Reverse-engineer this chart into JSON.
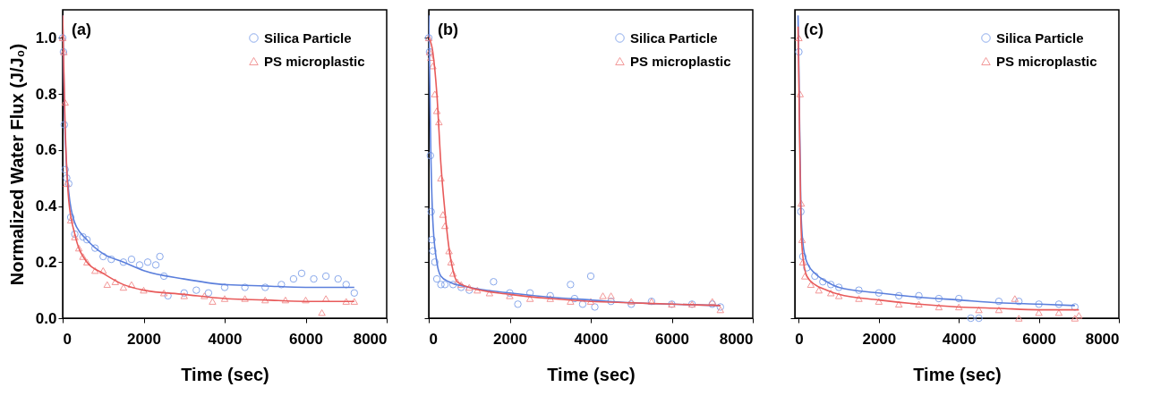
{
  "chart_data": [
    {
      "type": "scatter",
      "xlabel": "Time (sec)",
      "ylabel": "Normalized Water Flux (J/J₀)",
      "annotations": [
        "(a)"
      ],
      "xlim": [
        0,
        8000
      ],
      "xticks": [
        0,
        2000,
        4000,
        6000,
        8000
      ],
      "ylim": [
        0,
        1.1
      ],
      "yticks": [
        {
          "value": 0,
          "label": "0.0"
        },
        {
          "value": 0.2,
          "label": "0.2"
        },
        {
          "value": 0.4,
          "label": "0.4"
        },
        {
          "value": 0.6,
          "label": "0.6"
        },
        {
          "value": 0.8,
          "label": "0.8"
        },
        {
          "value": 1.0,
          "label": "1.0"
        }
      ],
      "grid": false,
      "legend": "top right",
      "series": [
        {
          "name": "Silica Particle",
          "marker": "circle",
          "color": "#7b9ee8",
          "x": [
            0,
            20,
            40,
            60,
            100,
            150,
            200,
            300,
            500,
            600,
            800,
            1000,
            1200,
            1500,
            1700,
            1900,
            2100,
            2300,
            2400,
            2500,
            2600,
            3000,
            3300,
            3600,
            4000,
            4500,
            5000,
            5400,
            5700,
            5900,
            6200,
            6500,
            6800,
            7000,
            7200
          ],
          "values": [
            1.0,
            0.95,
            0.69,
            0.53,
            0.5,
            0.48,
            0.36,
            0.3,
            0.29,
            0.28,
            0.25,
            0.22,
            0.21,
            0.2,
            0.21,
            0.19,
            0.2,
            0.19,
            0.22,
            0.15,
            0.08,
            0.09,
            0.1,
            0.09,
            0.11,
            0.11,
            0.11,
            0.12,
            0.14,
            0.16,
            0.14,
            0.15,
            0.14,
            0.12,
            0.09
          ]
        },
        {
          "name": "PS microplastic",
          "marker": "triangle",
          "color": "#f08a8a",
          "x": [
            0,
            30,
            60,
            100,
            200,
            300,
            400,
            500,
            600,
            800,
            1000,
            1100,
            1300,
            1500,
            1700,
            2000,
            2500,
            3000,
            3500,
            3700,
            4000,
            4500,
            5000,
            5500,
            6000,
            6400,
            6500,
            7000,
            7200
          ],
          "values": [
            1.0,
            0.95,
            0.77,
            0.48,
            0.35,
            0.29,
            0.25,
            0.22,
            0.2,
            0.17,
            0.17,
            0.12,
            0.13,
            0.11,
            0.12,
            0.1,
            0.09,
            0.08,
            0.08,
            0.06,
            0.07,
            0.07,
            0.065,
            0.065,
            0.065,
            0.02,
            0.07,
            0.06,
            0.06
          ]
        },
        {
          "type": "line",
          "color": "#5b7fdc",
          "x": [
            0,
            50,
            150,
            300,
            600,
            1000,
            1500,
            2000,
            3000,
            4000,
            5000,
            6000,
            7200
          ],
          "values": [
            1.08,
            0.7,
            0.45,
            0.34,
            0.28,
            0.23,
            0.2,
            0.17,
            0.14,
            0.12,
            0.115,
            0.11,
            0.11
          ]
        },
        {
          "type": "line",
          "color": "#e85a5a",
          "x": [
            0,
            50,
            150,
            300,
            600,
            1000,
            1500,
            2000,
            3000,
            4000,
            5000,
            6000,
            7200
          ],
          "values": [
            1.08,
            0.75,
            0.42,
            0.3,
            0.2,
            0.16,
            0.12,
            0.1,
            0.085,
            0.07,
            0.065,
            0.06,
            0.06
          ]
        }
      ]
    },
    {
      "type": "scatter",
      "xlabel": "Time (sec)",
      "annotations": [
        "(b)"
      ],
      "xlim": [
        0,
        8000
      ],
      "xticks": [
        0,
        2000,
        4000,
        6000,
        8000
      ],
      "ylim": [
        0,
        1.1
      ],
      "yticks": [
        0,
        0.2,
        0.4,
        0.6,
        0.8,
        1.0
      ],
      "tick_labels": "x",
      "grid": false,
      "legend": "top right",
      "series": [
        {
          "name": "Silica Particle",
          "marker": "circle",
          "color": "#7b9ee8",
          "x": [
            0,
            20,
            40,
            60,
            80,
            100,
            150,
            200,
            300,
            400,
            600,
            800,
            1000,
            1600,
            2000,
            2200,
            2500,
            3000,
            3500,
            3600,
            3800,
            4000,
            4100,
            4500,
            5000,
            5500,
            6000,
            6500,
            7000,
            7200
          ],
          "values": [
            1.0,
            0.95,
            0.58,
            0.38,
            0.28,
            0.24,
            0.2,
            0.14,
            0.12,
            0.12,
            0.12,
            0.11,
            0.1,
            0.13,
            0.09,
            0.05,
            0.09,
            0.08,
            0.12,
            0.07,
            0.05,
            0.15,
            0.04,
            0.06,
            0.05,
            0.06,
            0.05,
            0.05,
            0.05,
            0.04
          ]
        },
        {
          "name": "PS microplastic",
          "marker": "triangle",
          "color": "#f08a8a",
          "x": [
            0,
            20,
            50,
            100,
            150,
            200,
            250,
            300,
            350,
            400,
            500,
            550,
            600,
            700,
            800,
            1000,
            1200,
            1500,
            2000,
            2500,
            3000,
            3500,
            4000,
            4300,
            4500,
            5000,
            5500,
            6000,
            6500,
            7000,
            7200
          ],
          "values": [
            1.0,
            0.95,
            0.93,
            0.9,
            0.8,
            0.74,
            0.7,
            0.5,
            0.37,
            0.33,
            0.24,
            0.2,
            0.16,
            0.13,
            0.12,
            0.11,
            0.1,
            0.09,
            0.08,
            0.07,
            0.07,
            0.06,
            0.06,
            0.08,
            0.08,
            0.06,
            0.06,
            0.05,
            0.05,
            0.06,
            0.03
          ]
        },
        {
          "type": "line",
          "color": "#5b7fdc",
          "x": [
            0,
            50,
            100,
            200,
            300,
            500,
            1000,
            2000,
            3000,
            4000,
            5000,
            6000,
            7200
          ],
          "values": [
            1.08,
            0.6,
            0.35,
            0.2,
            0.15,
            0.13,
            0.11,
            0.09,
            0.075,
            0.065,
            0.055,
            0.05,
            0.045
          ]
        },
        {
          "type": "line",
          "color": "#e85a5a",
          "x": [
            0,
            100,
            200,
            300,
            400,
            500,
            600,
            700,
            1000,
            2000,
            3000,
            4000,
            5000,
            6000,
            7200
          ],
          "values": [
            1.0,
            0.95,
            0.8,
            0.55,
            0.38,
            0.25,
            0.17,
            0.13,
            0.11,
            0.085,
            0.07,
            0.06,
            0.055,
            0.05,
            0.045
          ]
        }
      ]
    },
    {
      "type": "scatter",
      "xlabel": "Time (sec)",
      "annotations": [
        "(c)"
      ],
      "xlim": [
        -100,
        8000
      ],
      "xticks": [
        0,
        2000,
        4000,
        6000,
        8000
      ],
      "ylim": [
        0,
        1.1
      ],
      "yticks": [
        0,
        0.2,
        0.4,
        0.6,
        0.8,
        1.0
      ],
      "tick_labels": "x",
      "grid": false,
      "legend": "top right",
      "series": [
        {
          "name": "Silica Particle",
          "marker": "circle",
          "color": "#7b9ee8",
          "x": [
            0,
            50,
            100,
            200,
            400,
            600,
            800,
            1000,
            1500,
            2000,
            2500,
            3000,
            3500,
            4000,
            4300,
            4500,
            5000,
            5500,
            6000,
            6500,
            6900
          ],
          "values": [
            0.95,
            0.38,
            0.22,
            0.18,
            0.15,
            0.13,
            0.12,
            0.11,
            0.1,
            0.09,
            0.08,
            0.08,
            0.07,
            0.07,
            0.0,
            0.0,
            0.06,
            0.06,
            0.05,
            0.05,
            0.04
          ]
        },
        {
          "name": "PS microplastic",
          "marker": "triangle",
          "color": "#f08a8a",
          "x": [
            0,
            30,
            60,
            80,
            100,
            150,
            300,
            500,
            800,
            1000,
            1500,
            2000,
            2500,
            3000,
            3500,
            4000,
            4500,
            5000,
            5400,
            5500,
            6000,
            6500,
            6900,
            7000
          ],
          "values": [
            1.0,
            0.8,
            0.41,
            0.28,
            0.2,
            0.15,
            0.12,
            0.1,
            0.09,
            0.08,
            0.07,
            0.06,
            0.05,
            0.05,
            0.04,
            0.04,
            0.03,
            0.03,
            0.07,
            0.0,
            0.02,
            0.02,
            0.0,
            0.01
          ]
        },
        {
          "type": "line",
          "color": "#5b7fdc",
          "x": [
            -20,
            0,
            50,
            100,
            200,
            400,
            700,
            1000,
            2000,
            3000,
            4000,
            5000,
            6000,
            6900
          ],
          "values": [
            1.08,
            0.9,
            0.4,
            0.27,
            0.2,
            0.16,
            0.13,
            0.11,
            0.09,
            0.075,
            0.065,
            0.055,
            0.05,
            0.045
          ]
        },
        {
          "type": "line",
          "color": "#e85a5a",
          "x": [
            -20,
            0,
            50,
            100,
            200,
            400,
            700,
            1000,
            2000,
            3000,
            4000,
            5000,
            6000,
            7000
          ],
          "values": [
            1.04,
            0.85,
            0.35,
            0.22,
            0.15,
            0.12,
            0.1,
            0.085,
            0.065,
            0.05,
            0.04,
            0.035,
            0.03,
            0.03
          ]
        }
      ]
    }
  ]
}
